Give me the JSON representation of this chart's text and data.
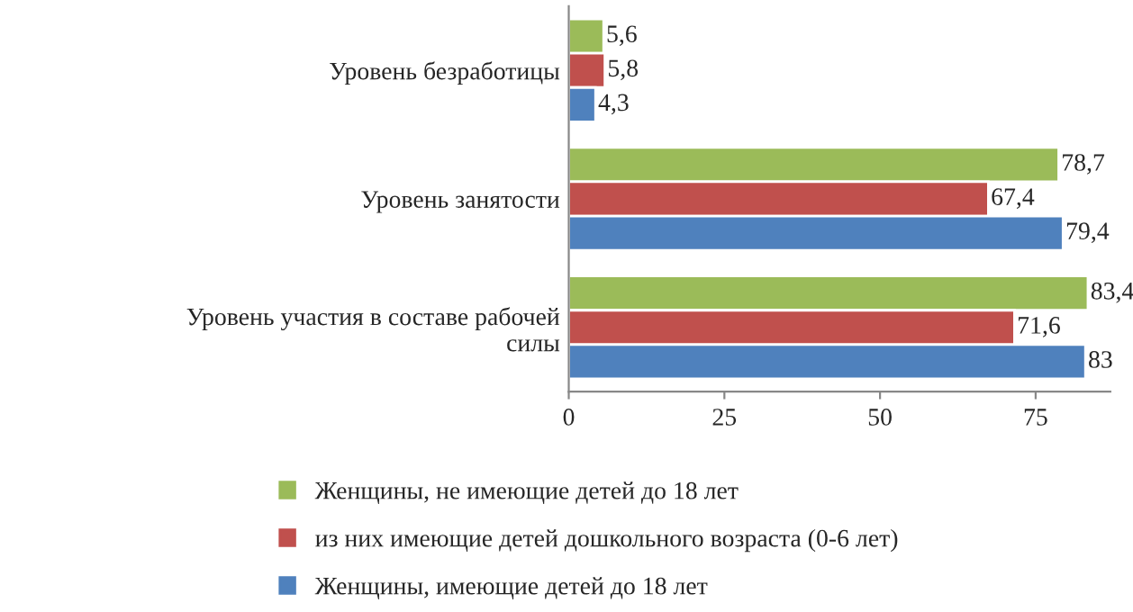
{
  "chart_data": {
    "type": "bar",
    "orientation": "horizontal",
    "categories": [
      "Уровень безработицы",
      "Уровень занятости",
      "Уровень участия в составе рабочей\nсилы"
    ],
    "series": [
      {
        "name": "Женщины, не имеющие детей до 18 лет",
        "color": "#9bbb59",
        "values": [
          5.6,
          78.7,
          83.4
        ],
        "value_labels": [
          "5,6",
          "78,7",
          "83,4"
        ]
      },
      {
        "name": "из них имеющие детей дошкольного возраста (0-6 лет)",
        "color": "#c0504d",
        "values": [
          5.8,
          67.4,
          71.6
        ],
        "value_labels": [
          "5,8",
          "67,4",
          "71,6"
        ]
      },
      {
        "name": "Женщины, имеющие детей до 18 лет",
        "color": "#4f81bd",
        "values": [
          4.3,
          79.4,
          83
        ],
        "value_labels": [
          "4,3",
          "79,4",
          "83"
        ]
      }
    ],
    "xlim": [
      0,
      87
    ],
    "xticks": [
      0,
      25,
      50,
      75
    ],
    "grid": false,
    "legend": "bottom"
  }
}
